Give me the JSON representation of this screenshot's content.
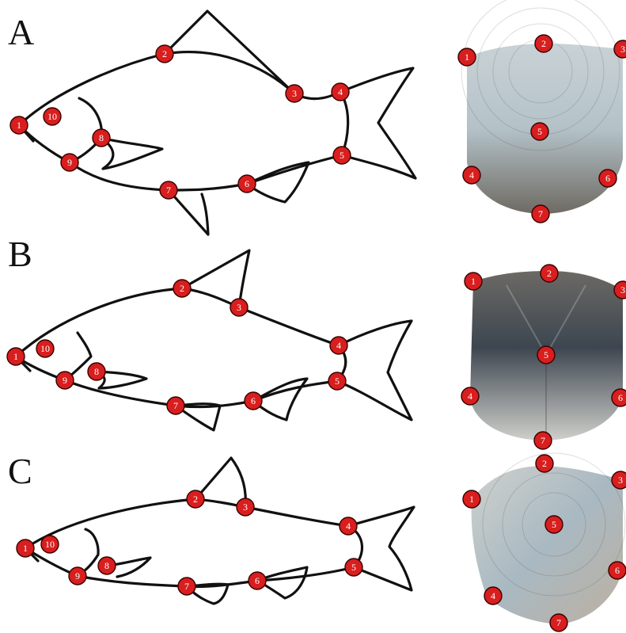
{
  "panels": [
    {
      "letter": "A",
      "fish_landmarks": [
        "1",
        "2",
        "3",
        "4",
        "5",
        "6",
        "7",
        "8",
        "9",
        "10"
      ],
      "scale_landmarks": [
        "1",
        "2",
        "3",
        "4",
        "5",
        "6",
        "7"
      ],
      "scale_colors": {
        "top": "#c9d2d6",
        "mid": "#b4c2c8",
        "bottom": "#6e6a63"
      }
    },
    {
      "letter": "B",
      "fish_landmarks": [
        "1",
        "2",
        "3",
        "4",
        "5",
        "6",
        "7",
        "8",
        "9",
        "10"
      ],
      "scale_landmarks": [
        "1",
        "2",
        "3",
        "4",
        "5",
        "6",
        "7"
      ],
      "scale_colors": {
        "top": "#6c6965",
        "mid": "#3d4650",
        "bottom": "#cfcfcb"
      }
    },
    {
      "letter": "C",
      "fish_landmarks": [
        "1",
        "2",
        "3",
        "4",
        "5",
        "6",
        "7",
        "8",
        "9",
        "10"
      ],
      "scale_landmarks": [
        "1",
        "2",
        "3",
        "4",
        "5",
        "6",
        "7"
      ],
      "scale_colors": {
        "top": "#cfd1cd",
        "mid": "#a9b9c2",
        "bottom": "#bdb0a0"
      }
    }
  ],
  "colors": {
    "landmark": "#d81e1e",
    "outline": "#111111"
  }
}
